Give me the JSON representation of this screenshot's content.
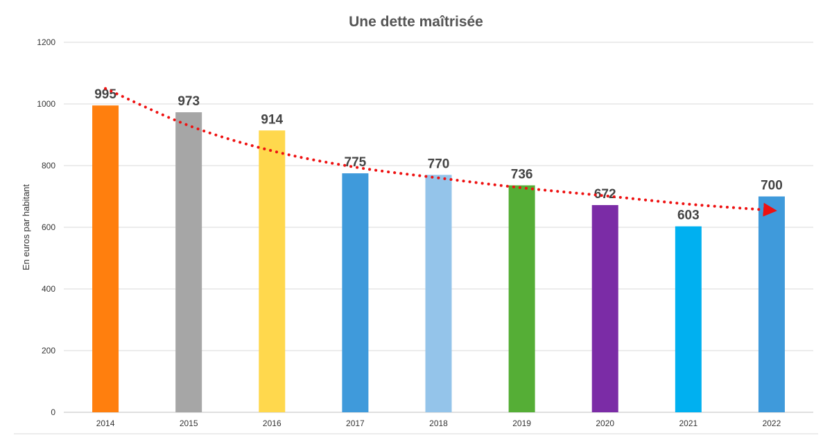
{
  "chart_data": {
    "type": "bar",
    "title": "Une dette maîtrisée",
    "xlabel": "",
    "ylabel": "En euros par habitant",
    "categories": [
      "2014",
      "2015",
      "2016",
      "2017",
      "2018",
      "2019",
      "2020",
      "2021",
      "2022"
    ],
    "values": [
      995,
      973,
      914,
      775,
      770,
      736,
      672,
      603,
      700
    ],
    "ylim": [
      0,
      1200
    ],
    "yticks": [
      0,
      200,
      400,
      600,
      800,
      1000,
      1200
    ],
    "grid": true,
    "legend": "none",
    "bar_colors": [
      "#FF7F0E",
      "#A6A6A6",
      "#FFD84D",
      "#3F9ADB",
      "#94C4EA",
      "#55AE36",
      "#7B2CA6",
      "#00B0F0",
      "#3F9ADB"
    ],
    "trendline": {
      "style": "dotted-arrow",
      "color": "#EE1111",
      "values": [
        1050,
        930,
        848,
        795,
        760,
        728,
        702,
        675,
        655
      ]
    }
  }
}
